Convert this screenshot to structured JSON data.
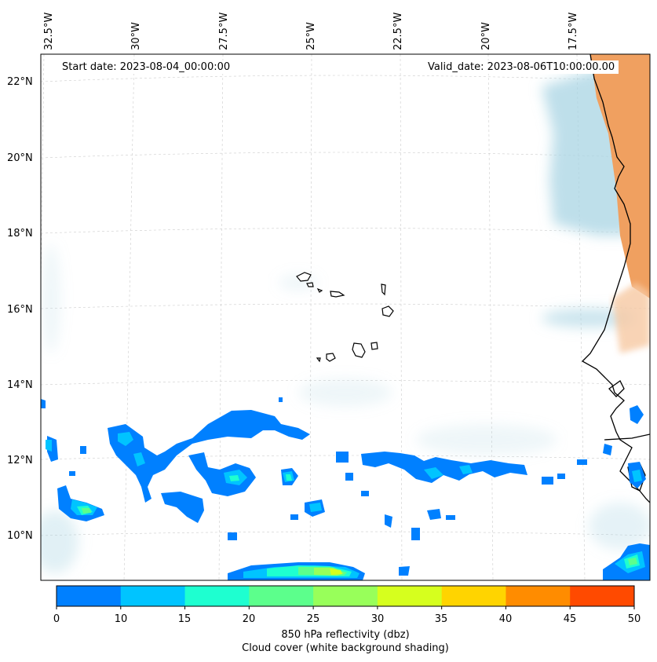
{
  "map": {
    "start_date": "Start date: 2023-08-04_00:00:00",
    "valid_date": "Valid_date: 2023-08-06T10:00:00.00",
    "longitude_labels": [
      "32.5°W",
      "30°W",
      "27.5°W",
      "25°W",
      "22.5°W",
      "20°W",
      "17.5°W"
    ],
    "latitude_labels": [
      "22°N",
      "20°N",
      "18°N",
      "16°N",
      "14°N",
      "12°N",
      "10°N"
    ],
    "region": "Cape Verde islands and West African coast (Mauritania, Senegal, Gambia, Guinea-Bissau, Guinea)",
    "cloud_cover_color": "#a8d4e3",
    "land_heat_color": "#f0a060",
    "coastline_color": "#000000"
  },
  "colorbar": {
    "title": "850 hPa reflectivity (dbz)",
    "subtitle": "Cloud cover (white background shading)",
    "ticks": [
      "0",
      "10",
      "15",
      "20",
      "25",
      "30",
      "35",
      "40",
      "45",
      "50"
    ],
    "bins": [
      {
        "from": 0,
        "to": 10,
        "color": "#0080ff"
      },
      {
        "from": 10,
        "to": 15,
        "color": "#00c4ff"
      },
      {
        "from": 15,
        "to": 20,
        "color": "#1effd0"
      },
      {
        "from": 20,
        "to": 25,
        "color": "#5cff8c"
      },
      {
        "from": 25,
        "to": 30,
        "color": "#98ff5a"
      },
      {
        "from": 30,
        "to": 35,
        "color": "#d6ff1e"
      },
      {
        "from": 35,
        "to": 40,
        "color": "#ffd400"
      },
      {
        "from": 40,
        "to": 45,
        "color": "#ff8c00"
      },
      {
        "from": 45,
        "to": 50,
        "color": "#ff4a00"
      }
    ]
  }
}
